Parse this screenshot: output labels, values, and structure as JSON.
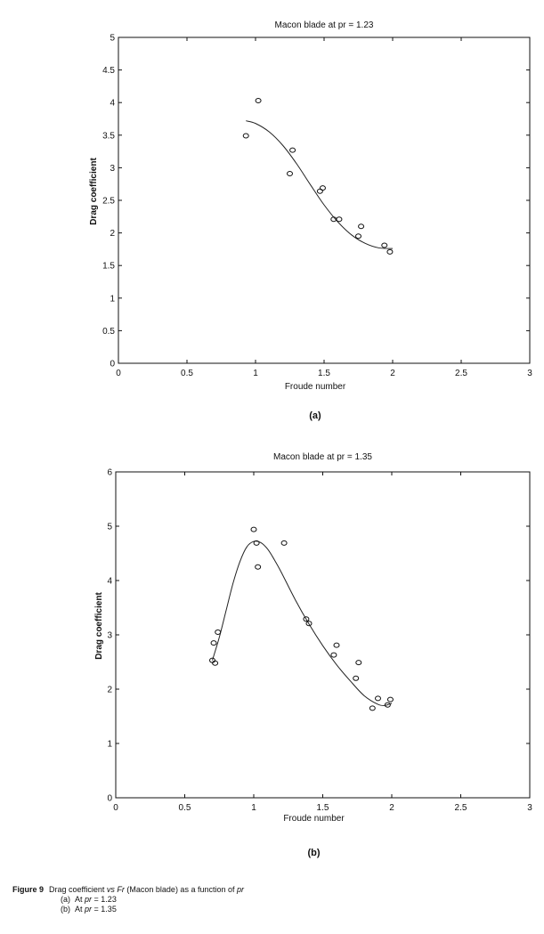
{
  "chart_data": [
    {
      "type": "scatter",
      "title": "Macon blade at pr =  1.23",
      "xlabel": "Froude number",
      "ylabel": "Drag coefficient",
      "panel_label": "(a)",
      "xlim": [
        0,
        3
      ],
      "ylim": [
        0,
        5
      ],
      "xticks": [
        "0",
        "0.5",
        "1",
        "1.5",
        "2",
        "2.5",
        "3"
      ],
      "yticks": [
        "0",
        "0.5",
        "1",
        "1.5",
        "2",
        "2.5",
        "3",
        "3.5",
        "4",
        "4.5",
        "5"
      ],
      "xtick_values": [
        0,
        0.5,
        1,
        1.5,
        2,
        2.5,
        3
      ],
      "ytick_values": [
        0,
        0.5,
        1,
        1.5,
        2,
        2.5,
        3,
        3.5,
        4,
        4.5,
        5
      ],
      "points": {
        "x": [
          0.93,
          1.02,
          1.25,
          1.27,
          1.47,
          1.49,
          1.57,
          1.61,
          1.75,
          1.77,
          1.94,
          1.98
        ],
        "y": [
          3.49,
          4.03,
          2.91,
          3.27,
          2.64,
          2.69,
          2.21,
          2.21,
          1.95,
          2.1,
          1.81,
          1.71
        ]
      },
      "fit_curve": {
        "x": [
          0.93,
          1.0,
          1.1,
          1.2,
          1.3,
          1.4,
          1.5,
          1.6,
          1.7,
          1.8,
          1.9,
          2.0
        ],
        "y": [
          3.72,
          3.68,
          3.55,
          3.34,
          3.06,
          2.74,
          2.43,
          2.17,
          1.97,
          1.84,
          1.77,
          1.76
        ]
      }
    },
    {
      "type": "scatter",
      "title": "Macon blade at pr =  1.35",
      "xlabel": "Froude number",
      "ylabel": "Drag coefficient",
      "panel_label": "(b)",
      "xlim": [
        0,
        3
      ],
      "ylim": [
        0,
        6
      ],
      "xticks": [
        "0",
        "0.5",
        "1",
        "1.5",
        "2",
        "2.5",
        "3"
      ],
      "yticks": [
        "0",
        "1",
        "2",
        "3",
        "4",
        "5",
        "6"
      ],
      "xtick_values": [
        0,
        0.5,
        1,
        1.5,
        2,
        2.5,
        3
      ],
      "ytick_values": [
        0,
        1,
        2,
        3,
        4,
        5,
        6
      ],
      "points": {
        "x": [
          0.7,
          0.71,
          0.72,
          0.74,
          1.0,
          1.02,
          1.03,
          1.22,
          1.38,
          1.4,
          1.58,
          1.6,
          1.74,
          1.76,
          1.86,
          1.9,
          1.97,
          1.99
        ],
        "y": [
          2.53,
          2.85,
          2.48,
          3.05,
          4.94,
          4.69,
          4.25,
          4.69,
          3.29,
          3.21,
          2.63,
          2.81,
          2.2,
          2.49,
          1.65,
          1.83,
          1.71,
          1.81
        ]
      },
      "fit_curve": {
        "x": [
          0.7,
          0.75,
          0.8,
          0.85,
          0.9,
          0.95,
          1.0,
          1.05,
          1.1,
          1.15,
          1.2,
          1.3,
          1.4,
          1.5,
          1.6,
          1.7,
          1.8,
          1.9,
          1.95,
          2.0
        ],
        "y": [
          2.53,
          2.95,
          3.45,
          3.95,
          4.35,
          4.62,
          4.72,
          4.7,
          4.58,
          4.38,
          4.15,
          3.65,
          3.2,
          2.8,
          2.45,
          2.15,
          1.88,
          1.72,
          1.7,
          1.74
        ]
      }
    }
  ],
  "caption": {
    "label": "Figure 9",
    "text_prefix": "Drag coefficient ",
    "text_vs": "vs",
    "text_fr": "Fr",
    "text_mid": " (Macon blade) as a function of ",
    "text_pr": "pr",
    "items": [
      {
        "tag": "(a)",
        "prefix": "At ",
        "var": "pr",
        "value": " = 1.23"
      },
      {
        "tag": "(b)",
        "prefix": "At ",
        "var": "pr",
        "value": " = 1.35"
      }
    ]
  }
}
